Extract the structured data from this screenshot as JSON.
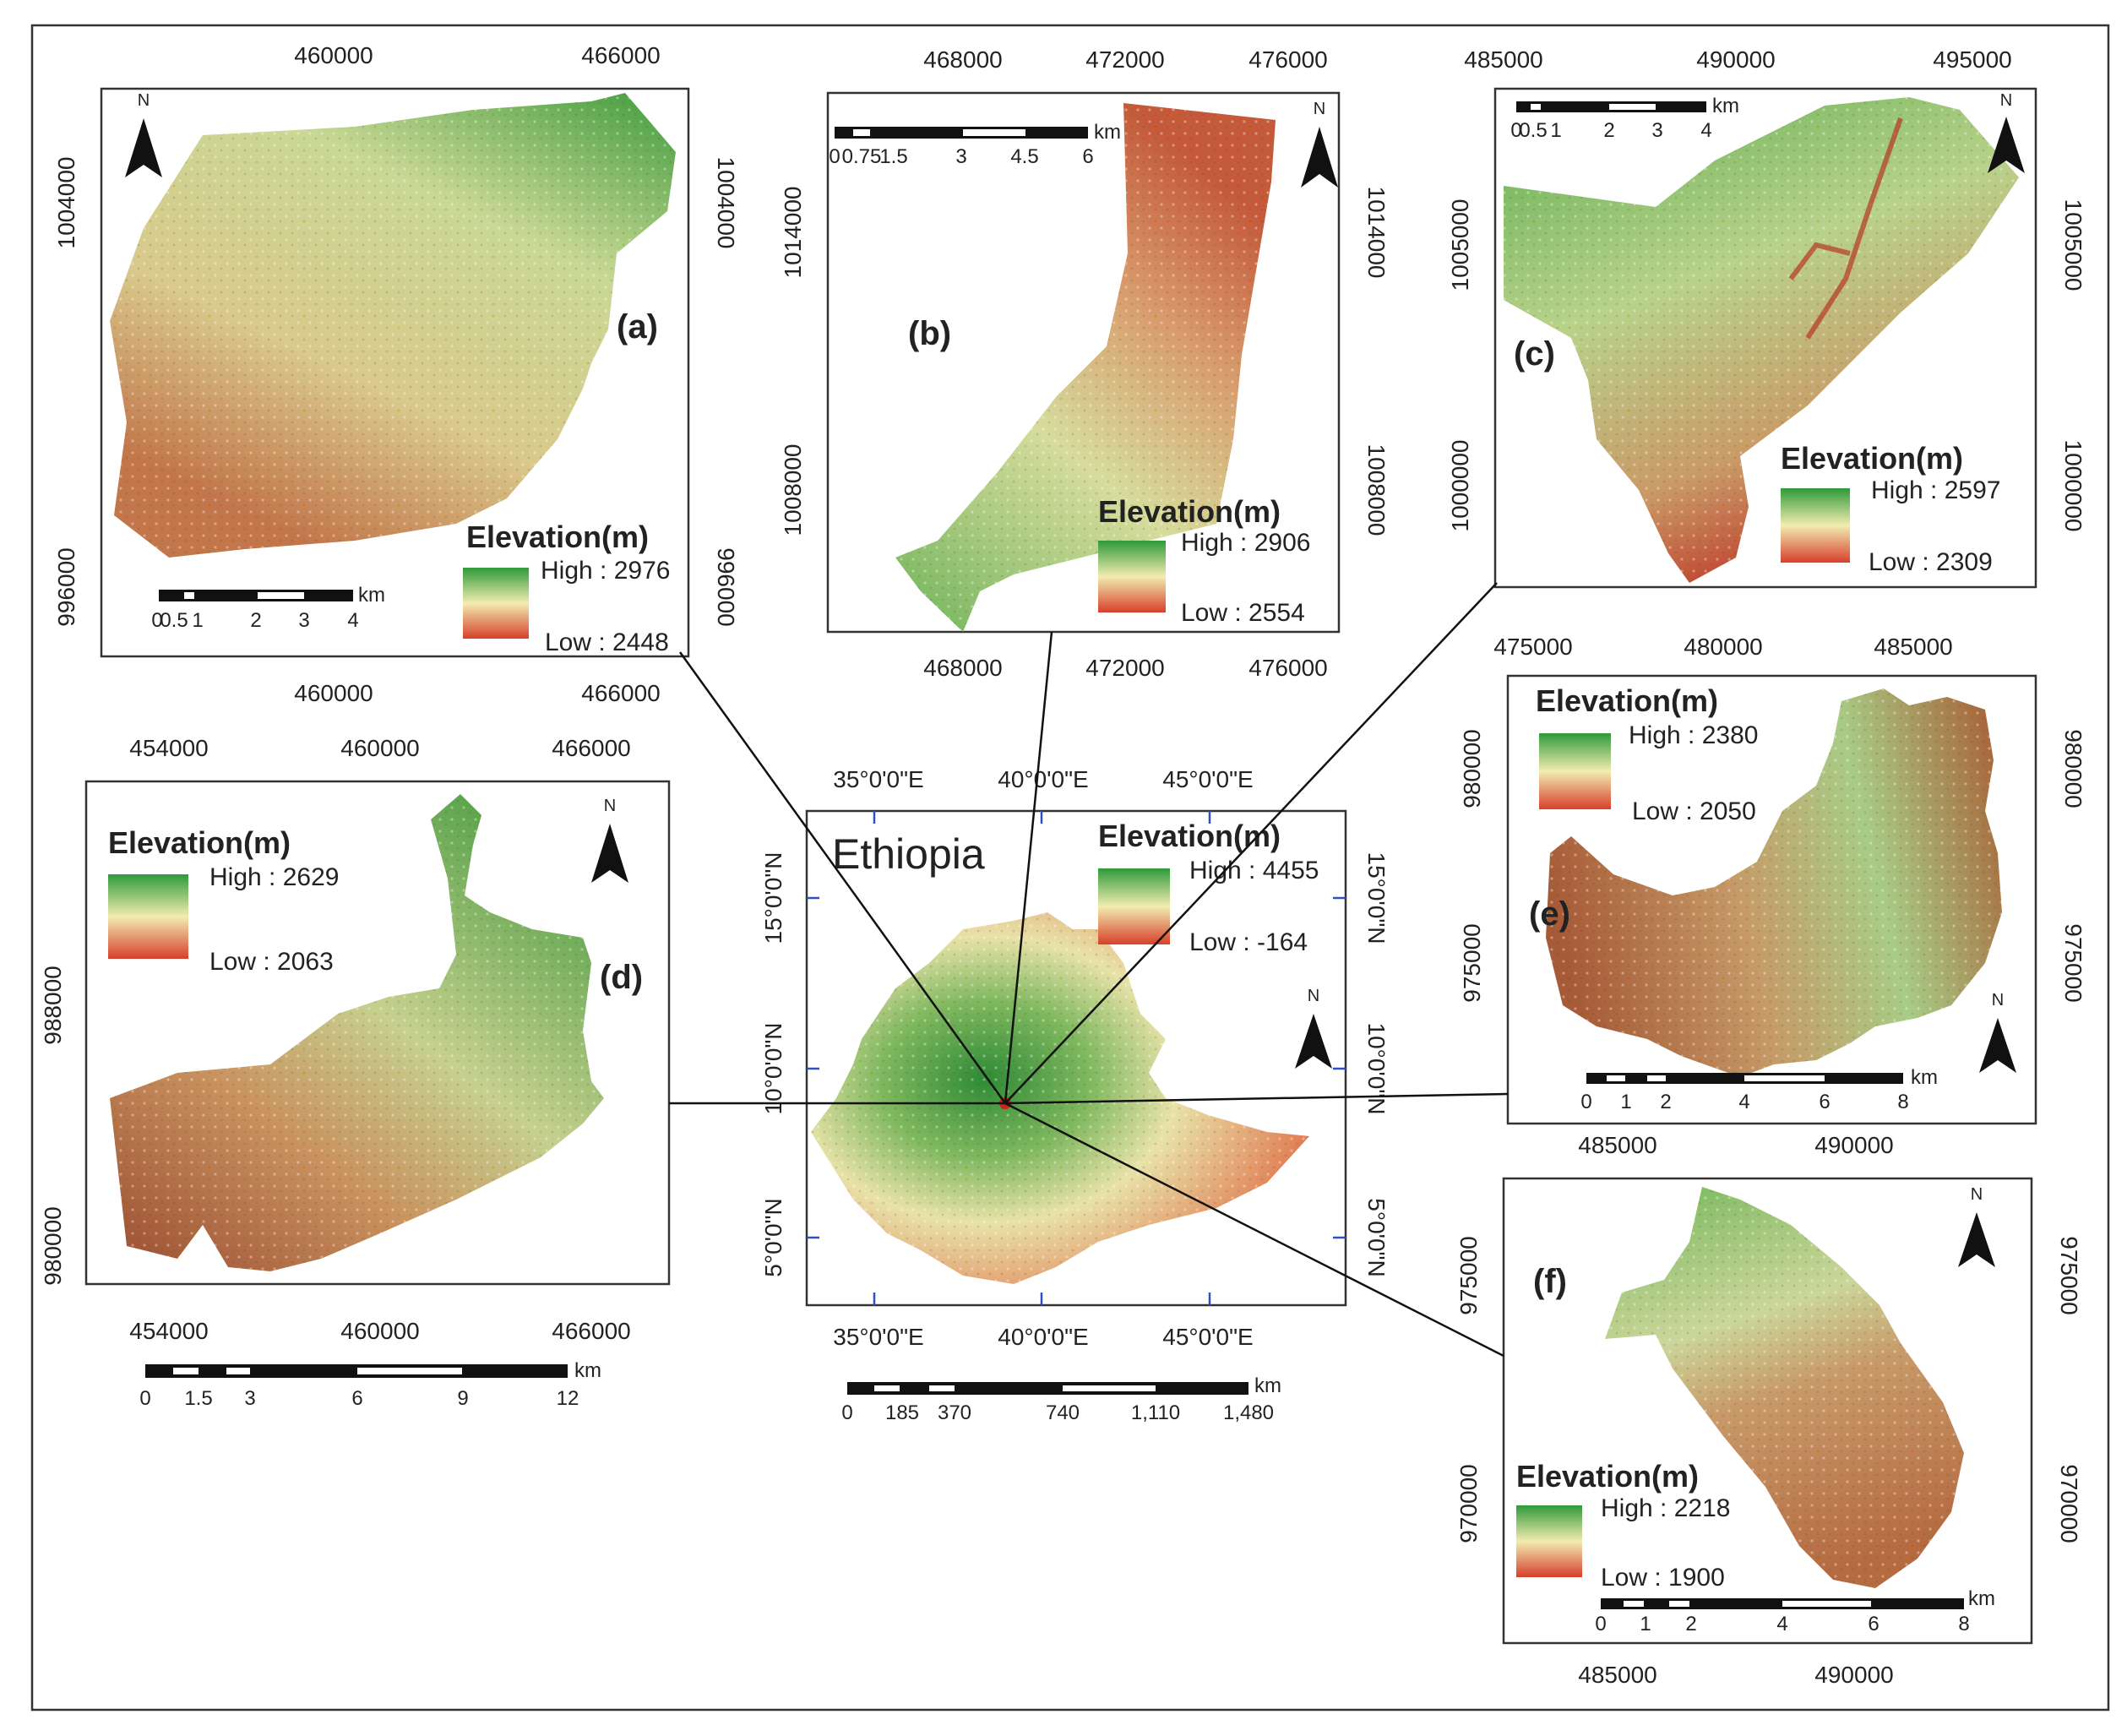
{
  "maps": {
    "a": {
      "label": "(a)",
      "x_ticks": [
        "460000",
        "466000"
      ],
      "y_ticks": [
        "1004000",
        "996000"
      ],
      "legend": {
        "title": "Elevation(m)",
        "high": "High : 2976",
        "low": "Low : 2448"
      },
      "scale": {
        "ticks": [
          "0",
          "0.5",
          "1",
          "2",
          "3",
          "4"
        ],
        "unit": "km"
      },
      "north": "N"
    },
    "b": {
      "label": "(b)",
      "x_ticks": [
        "468000",
        "472000",
        "476000"
      ],
      "y_ticks": [
        "1014000",
        "1008000"
      ],
      "legend": {
        "title": "Elevation(m)",
        "high": "High : 2906",
        "low": "Low : 2554"
      },
      "scale": {
        "ticks": [
          "0",
          "0.75",
          "1.5",
          "3",
          "4.5",
          "6"
        ],
        "unit": "km"
      },
      "north": "N"
    },
    "c": {
      "label": "(c)",
      "x_ticks": [
        "485000",
        "490000",
        "495000"
      ],
      "y_ticks": [
        "1005000",
        "1000000"
      ],
      "legend": {
        "title": "Elevation(m)",
        "high": "High : 2597",
        "low": "Low : 2309"
      },
      "scale": {
        "ticks": [
          "0",
          "0.5",
          "1",
          "2",
          "3",
          "4"
        ],
        "unit": "km"
      },
      "north": "N"
    },
    "d": {
      "label": "(d)",
      "x_ticks": [
        "454000",
        "460000",
        "466000"
      ],
      "y_ticks": [
        "988000",
        "980000"
      ],
      "legend": {
        "title": "Elevation(m)",
        "high": "High : 2629",
        "low": "Low : 2063"
      },
      "scale": {
        "ticks": [
          "0",
          "1.5",
          "3",
          "6",
          "9",
          "12"
        ],
        "unit": "km"
      },
      "north": "N"
    },
    "e": {
      "label": "(e)",
      "x_ticks": [
        "475000",
        "480000",
        "485000"
      ],
      "y_ticks": [
        "980000",
        "975000"
      ],
      "legend": {
        "title": "Elevation(m)",
        "high": "High : 2380",
        "low": "Low : 2050"
      },
      "scale": {
        "ticks": [
          "0",
          "1",
          "2",
          "4",
          "6",
          "8"
        ],
        "unit": "km"
      },
      "north": "N"
    },
    "f": {
      "label": "(f)",
      "x_ticks": [
        "485000",
        "490000"
      ],
      "y_ticks": [
        "975000",
        "970000"
      ],
      "legend": {
        "title": "Elevation(m)",
        "high": "High : 2218",
        "low": "Low : 1900"
      },
      "scale": {
        "ticks": [
          "0",
          "1",
          "2",
          "4",
          "6",
          "8"
        ],
        "unit": "km"
      },
      "north": "N"
    },
    "ethiopia": {
      "title": "Ethiopia",
      "x_ticks": [
        "35°0'0\"E",
        "40°0'0\"E",
        "45°0'0\"E"
      ],
      "y_ticks": [
        "15°0'0\"N",
        "10°0'0\"N",
        "5°0'0\"N"
      ],
      "legend": {
        "title": "Elevation(m)",
        "high": "High : 4455",
        "low": "Low : -164"
      },
      "scale": {
        "ticks": [
          "0",
          "185",
          "370",
          "740",
          "1,110",
          "1,480"
        ],
        "unit": "km"
      },
      "north": "N"
    }
  },
  "colors": {
    "elev_high": "#2f9a3a",
    "elev_mid": "#f2ecb0",
    "elev_low": "#d7402a",
    "terrain_green": "#8cc26a",
    "terrain_light": "#d9dfa0",
    "terrain_brown": "#b06a3c"
  }
}
